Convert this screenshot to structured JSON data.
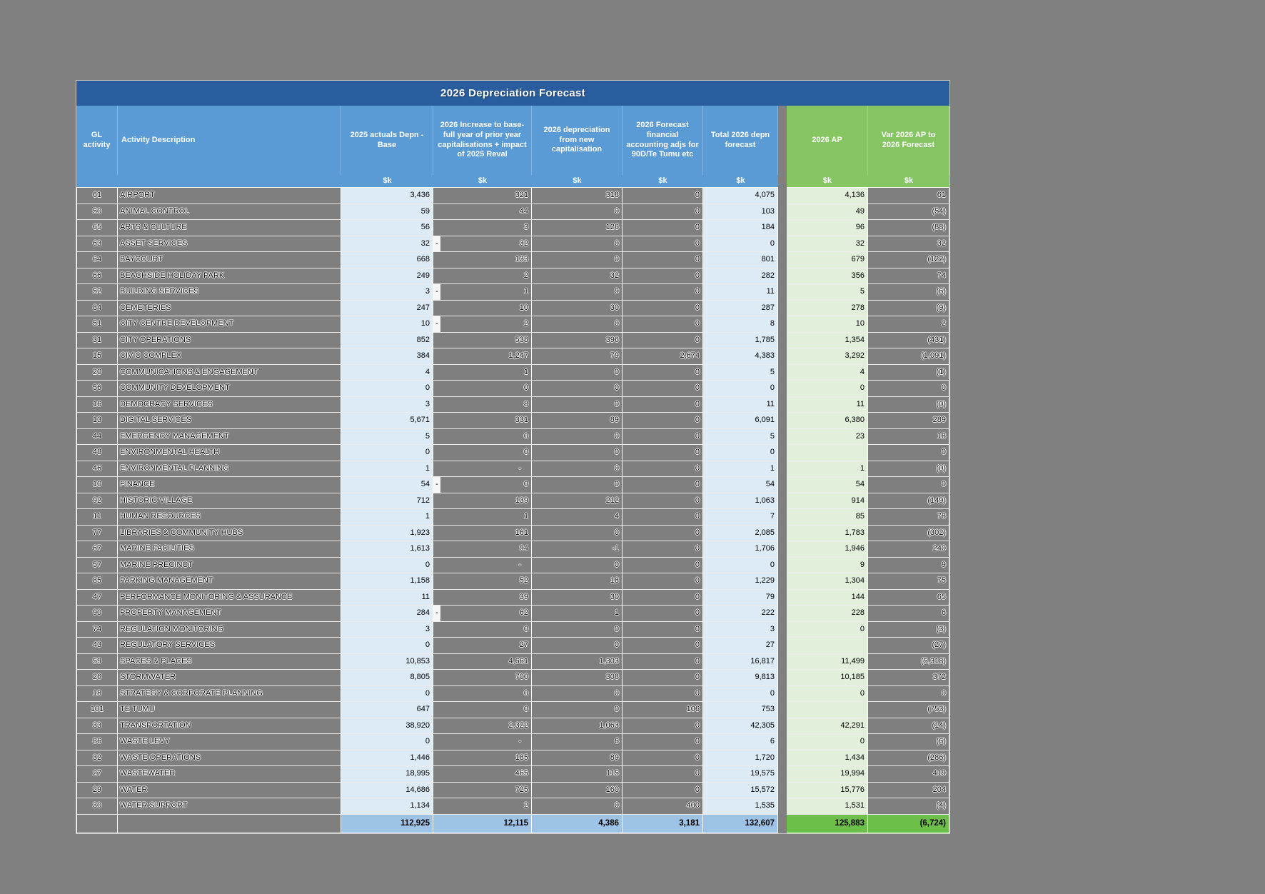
{
  "title": "2026 Depreciation Forecast",
  "units": "$k",
  "columns": [
    "GL activity",
    "Activity Description",
    "2025 actuals Depn - Base",
    "2026 Increase to base- full year of prior year capitalisations + impact of 2025 Reval",
    "2026 depreciation from new capitalisation",
    "2026 Forecast financial accounting adjs for 90D/Te Tumu etc",
    "Total 2026 depn forecast",
    "2026 AP",
    "Var 2026 AP to 2026 Forecast"
  ],
  "rows": [
    {
      "gl": "61",
      "desc": "AIRPORT",
      "act": "3,436",
      "inc": "321",
      "new": "318",
      "adj": "0",
      "total": "4,075",
      "ap": "4,136",
      "var": "61"
    },
    {
      "gl": "50",
      "desc": "ANIMAL CONTROL",
      "act": "59",
      "inc": "44",
      "new": "0",
      "adj": "0",
      "total": "103",
      "ap": "49",
      "var": "(54)"
    },
    {
      "gl": "65",
      "desc": "ARTS & CULTURE",
      "act": "56",
      "inc": "3",
      "new": "126",
      "adj": "0",
      "total": "184",
      "ap": "96",
      "var": "(88)"
    },
    {
      "gl": "63",
      "desc": "ASSET SERVICES",
      "act": "32",
      "inc": "-32",
      "new": "0",
      "adj": "0",
      "total": "0",
      "ap": "32",
      "var": "32"
    },
    {
      "gl": "64",
      "desc": "BAYCOURT",
      "act": "668",
      "inc": "133",
      "new": "0",
      "adj": "0",
      "total": "801",
      "ap": "679",
      "var": "(122)"
    },
    {
      "gl": "66",
      "desc": "BEACHSIDE HOLIDAY PARK",
      "act": "249",
      "inc": "2",
      "new": "32",
      "adj": "0",
      "total": "282",
      "ap": "356",
      "var": "74"
    },
    {
      "gl": "52",
      "desc": "BUILDING SERVICES",
      "act": "3",
      "inc": "-1",
      "new": "9",
      "adj": "0",
      "total": "11",
      "ap": "5",
      "var": "(6)"
    },
    {
      "gl": "84",
      "desc": "CEMETERIES",
      "act": "247",
      "inc": "10",
      "new": "30",
      "adj": "0",
      "total": "287",
      "ap": "278",
      "var": "(9)"
    },
    {
      "gl": "51",
      "desc": "CITY CENTRE DEVELOPMENT",
      "act": "10",
      "inc": "-2",
      "new": "0",
      "adj": "0",
      "total": "8",
      "ap": "10",
      "var": "2"
    },
    {
      "gl": "31",
      "desc": "CITY OPERATIONS",
      "act": "852",
      "inc": "538",
      "new": "396",
      "adj": "0",
      "total": "1,785",
      "ap": "1,354",
      "var": "(431)"
    },
    {
      "gl": "15",
      "desc": "CIVIC COMPLEX",
      "act": "384",
      "inc": "1,247",
      "new": "79",
      "adj": "2,674",
      "total": "4,383",
      "ap": "3,292",
      "var": "(1,091)"
    },
    {
      "gl": "20",
      "desc": "COMMUNICATIONS & ENGAGEMENT",
      "act": "4",
      "inc": "1",
      "new": "0",
      "adj": "0",
      "total": "5",
      "ap": "4",
      "var": "(1)"
    },
    {
      "gl": "56",
      "desc": "COMMUNITY DEVELOPMENT",
      "act": "0",
      "inc": "0",
      "new": "0",
      "adj": "0",
      "total": "0",
      "ap": "0",
      "var": "0"
    },
    {
      "gl": "16",
      "desc": "DEMOCRACY SERVICES",
      "act": "3",
      "inc": "8",
      "new": "0",
      "adj": "0",
      "total": "11",
      "ap": "11",
      "var": "(0)"
    },
    {
      "gl": "13",
      "desc": "DIGITAL SERVICES",
      "act": "5,671",
      "inc": "331",
      "new": "89",
      "adj": "0",
      "total": "6,091",
      "ap": "6,380",
      "var": "289"
    },
    {
      "gl": "44",
      "desc": "EMERGENCY MANAGEMENT",
      "act": "5",
      "inc": "0",
      "new": "0",
      "adj": "0",
      "total": "5",
      "ap": "23",
      "var": "18"
    },
    {
      "gl": "48",
      "desc": "ENVIRONMENTAL HEALTH",
      "act": "0",
      "inc": "0",
      "new": "0",
      "adj": "0",
      "total": "0",
      "ap": "",
      "var": "0"
    },
    {
      "gl": "46",
      "desc": "ENVIRONMENTAL PLANNING",
      "act": "1",
      "inc": "-",
      "new": "0",
      "adj": "0",
      "total": "1",
      "ap": "1",
      "var": "(0)"
    },
    {
      "gl": "10",
      "desc": "FINANCE",
      "act": "54",
      "inc": "-0",
      "new": "0",
      "adj": "0",
      "total": "54",
      "ap": "54",
      "var": "0"
    },
    {
      "gl": "92",
      "desc": "HISTORIC VILLAGE",
      "act": "712",
      "inc": "139",
      "new": "212",
      "adj": "0",
      "total": "1,063",
      "ap": "914",
      "var": "(149)"
    },
    {
      "gl": "11",
      "desc": "HUMAN RESOURCES",
      "act": "1",
      "inc": "1",
      "new": "4",
      "adj": "0",
      "total": "7",
      "ap": "85",
      "var": "78"
    },
    {
      "gl": "77",
      "desc": "LIBRARIES & COMMUNITY HUBS",
      "act": "1,923",
      "inc": "161",
      "new": "0",
      "adj": "0",
      "total": "2,085",
      "ap": "1,783",
      "var": "(302)"
    },
    {
      "gl": "67",
      "desc": "MARINE FACILITIES",
      "act": "1,613",
      "inc": "94",
      "new": "-1",
      "adj": "0",
      "total": "1,706",
      "ap": "1,946",
      "var": "240"
    },
    {
      "gl": "57",
      "desc": "MARINE PRECINCT",
      "act": "0",
      "inc": "-",
      "new": "0",
      "adj": "0",
      "total": "0",
      "ap": "9",
      "var": "9"
    },
    {
      "gl": "85",
      "desc": "PARKING MANAGEMENT",
      "act": "1,158",
      "inc": "52",
      "new": "18",
      "adj": "0",
      "total": "1,229",
      "ap": "1,304",
      "var": "75"
    },
    {
      "gl": "47",
      "desc": "PERFORMANCE MONITORING & ASSURANCE",
      "act": "11",
      "inc": "39",
      "new": "30",
      "adj": "0",
      "total": "79",
      "ap": "144",
      "var": "65"
    },
    {
      "gl": "90",
      "desc": "PROPERTY MANAGEMENT",
      "act": "284",
      "inc": "-62",
      "new": "1",
      "adj": "0",
      "total": "222",
      "ap": "228",
      "var": "6"
    },
    {
      "gl": "74",
      "desc": "REGULATION MONITORING",
      "act": "3",
      "inc": "0",
      "new": "0",
      "adj": "0",
      "total": "3",
      "ap": "0",
      "var": "(3)"
    },
    {
      "gl": "43",
      "desc": "REGULATORY SERVICES",
      "act": "0",
      "inc": "27",
      "new": "0",
      "adj": "0",
      "total": "27",
      "ap": "",
      "var": "(27)"
    },
    {
      "gl": "59",
      "desc": "SPACES & PLACES",
      "act": "10,853",
      "inc": "4,661",
      "new": "1,303",
      "adj": "0",
      "total": "16,817",
      "ap": "11,499",
      "var": "(5,318)"
    },
    {
      "gl": "26",
      "desc": "STORMWATER",
      "act": "8,805",
      "inc": "700",
      "new": "308",
      "adj": "0",
      "total": "9,813",
      "ap": "10,185",
      "var": "372"
    },
    {
      "gl": "18",
      "desc": "STRATEGY & CORPORATE PLANNING",
      "act": "0",
      "inc": "0",
      "new": "0",
      "adj": "0",
      "total": "0",
      "ap": "0",
      "var": "0"
    },
    {
      "gl": "101",
      "desc": "TE TUMU",
      "act": "647",
      "inc": "0",
      "new": "0",
      "adj": "106",
      "total": "753",
      "ap": "",
      "var": "(753)"
    },
    {
      "gl": "33",
      "desc": "TRANSPORTATION",
      "act": "38,920",
      "inc": "2,322",
      "new": "1,063",
      "adj": "0",
      "total": "42,305",
      "ap": "42,291",
      "var": "(14)"
    },
    {
      "gl": "86",
      "desc": "WASTE LEVY",
      "act": "0",
      "inc": "-",
      "new": "6",
      "adj": "0",
      "total": "6",
      "ap": "0",
      "var": "(6)"
    },
    {
      "gl": "32",
      "desc": "WASTE OPERATIONS",
      "act": "1,446",
      "inc": "185",
      "new": "89",
      "adj": "0",
      "total": "1,720",
      "ap": "1,434",
      "var": "(286)"
    },
    {
      "gl": "27",
      "desc": "WASTEWATER",
      "act": "18,995",
      "inc": "465",
      "new": "115",
      "adj": "0",
      "total": "19,575",
      "ap": "19,994",
      "var": "419"
    },
    {
      "gl": "29",
      "desc": "WATER",
      "act": "14,686",
      "inc": "725",
      "new": "160",
      "adj": "0",
      "total": "15,572",
      "ap": "15,776",
      "var": "204"
    },
    {
      "gl": "30",
      "desc": "WATER SUPPORT",
      "act": "1,134",
      "inc": "2",
      "new": "0",
      "adj": "400",
      "total": "1,535",
      "ap": "1,531",
      "var": "(4)"
    }
  ],
  "totals": {
    "act": "112,925",
    "inc": "12,115",
    "new": "4,386",
    "adj": "3,181",
    "total": "132,607",
    "ap": "125,883",
    "var": "(6,724)"
  },
  "colors": {
    "page_bg": "#808080",
    "title_bg": "#2A5D9E",
    "header_blue": "#5B9BD5",
    "header_green": "#85C662",
    "cell_blue": "#DDEBF7",
    "cell_green": "#E2EFDA",
    "total_blue": "#9DC3E6",
    "total_green": "#6CC04A",
    "gray_cell": "#7F7F7F",
    "grid_line": "#FFFFFF"
  }
}
